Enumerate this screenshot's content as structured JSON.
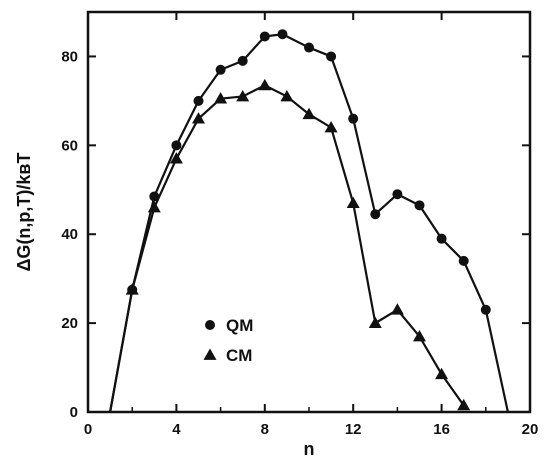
{
  "chart_data": {
    "type": "line",
    "xlabel": "n",
    "ylabel": "ΔG(n,p,T)/kʙT",
    "xlim": [
      0,
      20
    ],
    "ylim": [
      0,
      90
    ],
    "xticks": [
      0,
      4,
      8,
      12,
      16,
      20
    ],
    "yticks": [
      0,
      20,
      40,
      60,
      80
    ],
    "grid": false,
    "legend_position": "lower-left",
    "series": [
      {
        "name": "QM",
        "marker": "circle",
        "color": "#111111",
        "x": [
          1,
          2,
          3,
          4,
          5,
          6,
          7,
          8,
          8.8,
          10,
          11,
          12,
          13,
          14,
          15,
          16,
          17,
          18,
          19
        ],
        "y": [
          0,
          27.5,
          48.5,
          60,
          70,
          77,
          79,
          84.5,
          85,
          82,
          80,
          66,
          44.5,
          49,
          46.5,
          39,
          34,
          23,
          0
        ]
      },
      {
        "name": "CM",
        "marker": "triangle",
        "color": "#111111",
        "x": [
          1,
          2,
          3,
          4,
          5,
          6,
          7,
          8,
          9,
          10,
          11,
          12,
          13,
          14,
          15,
          16,
          17
        ],
        "y": [
          0,
          27.5,
          46,
          57,
          66,
          70.5,
          71,
          73.5,
          71,
          67,
          64,
          47,
          20,
          23,
          17,
          8.5,
          1.5
        ]
      }
    ]
  }
}
